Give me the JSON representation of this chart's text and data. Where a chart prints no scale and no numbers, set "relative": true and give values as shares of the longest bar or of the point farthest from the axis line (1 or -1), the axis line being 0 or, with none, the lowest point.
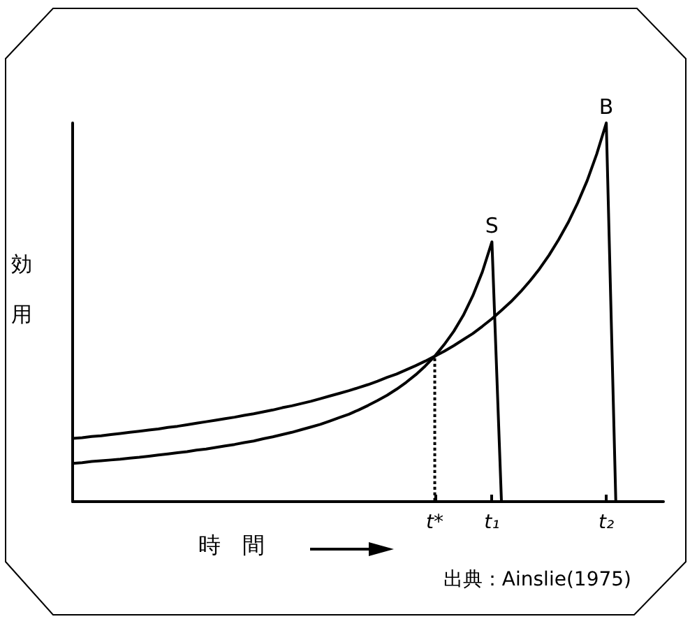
{
  "chart_data": {
    "type": "line",
    "relative": true,
    "xlabel": "時間",
    "ylabel": "効用",
    "categories": [
      null,
      null,
      null,
      null,
      null,
      null,
      null,
      null,
      null,
      null,
      null,
      null,
      null,
      null,
      null,
      null,
      null,
      null,
      null,
      null,
      null,
      null,
      null,
      null,
      null,
      null,
      null,
      null,
      null,
      null,
      null,
      null,
      null,
      null,
      null,
      null,
      null,
      null,
      "t*",
      null,
      null,
      null,
      null,
      null,
      "t₁",
      null,
      null,
      null,
      null,
      null,
      null,
      null,
      null,
      null,
      null,
      null,
      "t₂",
      null,
      null,
      null,
      null,
      null,
      null
    ],
    "tick_labels": "x",
    "legend": false,
    "grid": false,
    "marker": "none",
    "line_style": "solid",
    "annotations": [
      "出典：Ainslie(1975)"
    ],
    "series": [
      {
        "name": "S",
        "color": "#000000",
        "values": [
          0.101,
          0.103,
          0.106,
          0.108,
          0.11,
          0.112,
          0.115,
          0.117,
          0.12,
          0.123,
          0.126,
          0.129,
          0.132,
          0.136,
          0.139,
          0.143,
          0.147,
          0.151,
          0.156,
          0.16,
          0.166,
          0.171,
          0.177,
          0.183,
          0.19,
          0.197,
          0.204,
          0.213,
          0.222,
          0.231,
          0.242,
          0.254,
          0.267,
          0.281,
          0.297,
          0.315,
          0.335,
          0.358,
          0.384,
          0.415,
          0.45,
          0.492,
          0.544,
          0.607,
          0.686,
          0,
          null,
          null,
          null,
          null,
          null,
          null,
          null,
          null,
          null,
          null,
          null,
          null,
          null,
          null,
          null,
          null,
          null
        ]
      },
      {
        "name": "B",
        "color": "#000000",
        "values": [
          0.167,
          0.169,
          0.172,
          0.174,
          0.177,
          0.18,
          0.183,
          0.186,
          0.189,
          0.192,
          0.196,
          0.199,
          0.203,
          0.207,
          0.211,
          0.215,
          0.219,
          0.223,
          0.228,
          0.232,
          0.237,
          0.242,
          0.248,
          0.253,
          0.259,
          0.265,
          0.272,
          0.279,
          0.286,
          0.293,
          0.301,
          0.309,
          0.318,
          0.328,
          0.337,
          0.348,
          0.359,
          0.371,
          0.384,
          0.397,
          0.412,
          0.428,
          0.444,
          0.463,
          0.483,
          0.505,
          0.528,
          0.554,
          0.583,
          0.615,
          0.651,
          0.692,
          0.737,
          0.789,
          0.848,
          0.918,
          1,
          0,
          null,
          null,
          null,
          null,
          null
        ]
      },
      {
        "type": "bar",
        "color": "#000000",
        "line_style": "dotted",
        "values": [
          null,
          null,
          null,
          null,
          null,
          null,
          null,
          null,
          null,
          null,
          null,
          null,
          null,
          null,
          null,
          null,
          null,
          null,
          null,
          null,
          null,
          null,
          null,
          null,
          null,
          null,
          null,
          null,
          null,
          null,
          null,
          null,
          null,
          null,
          null,
          null,
          null,
          null,
          0.384,
          null,
          null,
          null,
          null,
          null,
          null,
          null,
          null,
          null,
          null,
          null,
          null,
          null,
          null,
          null,
          null,
          null,
          null,
          null,
          null,
          null,
          null,
          null,
          null
        ]
      }
    ]
  }
}
